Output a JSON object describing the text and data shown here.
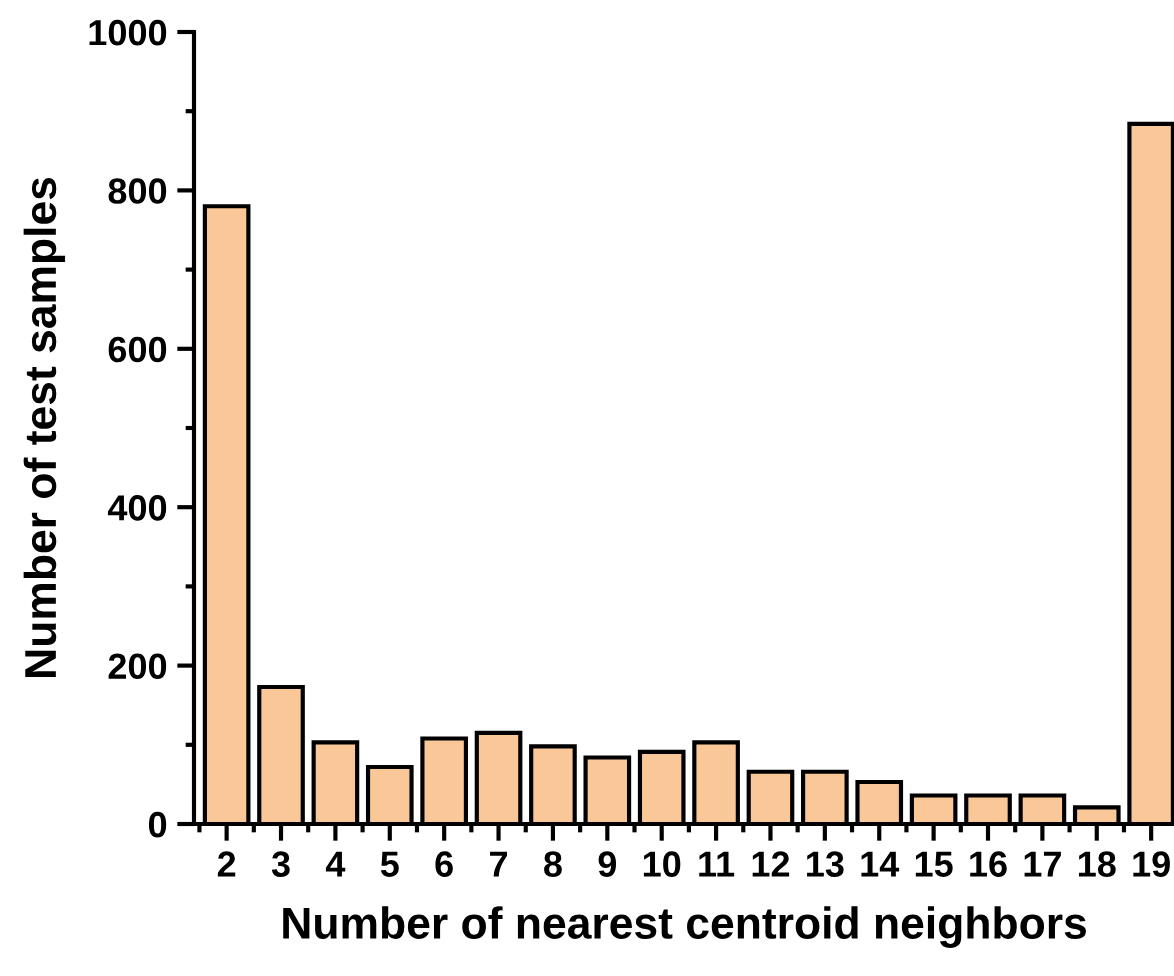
{
  "chart_data": {
    "type": "bar",
    "xlabel": "Number of nearest centroid neighbors",
    "ylabel": "Number of test samples",
    "categories": [
      "2",
      "3",
      "4",
      "5",
      "6",
      "7",
      "8",
      "9",
      "10",
      "11",
      "12",
      "13",
      "14",
      "15",
      "16",
      "17",
      "18",
      "19"
    ],
    "values": [
      780,
      173,
      103,
      72,
      108,
      115,
      98,
      84,
      91,
      103,
      66,
      66,
      53,
      36,
      36,
      36,
      21,
      884
    ],
    "color": "#fac898",
    "ylim": [
      0,
      1000
    ],
    "yticks": [
      0,
      200,
      400,
      600,
      800,
      1000
    ],
    "grid": false,
    "legend": false
  }
}
